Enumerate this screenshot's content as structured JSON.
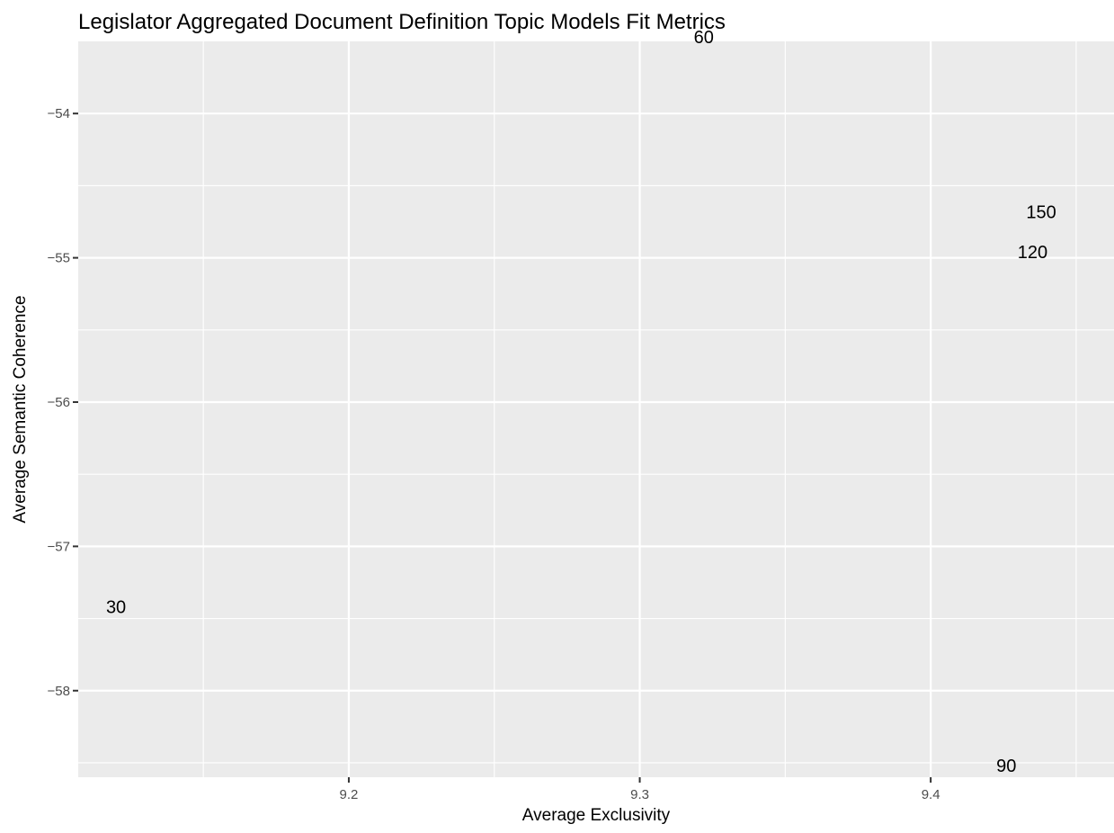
{
  "chart_data": {
    "type": "scatter",
    "title": "Legislator Aggregated Document Definition Topic Models Fit Metrics",
    "xlabel": "Average Exclusivity",
    "ylabel": "Average Semantic Coherence",
    "xlim": [
      9.107,
      9.463
    ],
    "ylim": [
      -58.6,
      -53.5
    ],
    "x_ticks": [
      9.2,
      9.3,
      9.4
    ],
    "x_tick_labels": [
      "9.2",
      "9.3",
      "9.4"
    ],
    "y_ticks": [
      -54,
      -55,
      -56,
      -57,
      -58
    ],
    "y_tick_labels": [
      "−54",
      "−55",
      "−56",
      "−57",
      "−58"
    ],
    "grid": true,
    "panel_background": "#ebebeb",
    "points": [
      {
        "x": 9.12,
        "y": -57.42,
        "label": "30"
      },
      {
        "x": 9.322,
        "y": -53.47,
        "label": "60"
      },
      {
        "x": 9.426,
        "y": -58.52,
        "label": "90"
      },
      {
        "x": 9.435,
        "y": -54.96,
        "label": "120"
      },
      {
        "x": 9.438,
        "y": -54.68,
        "label": "150"
      }
    ]
  }
}
